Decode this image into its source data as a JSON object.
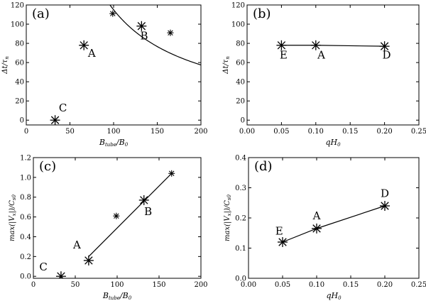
{
  "chart_data": [
    {
      "type": "scatter",
      "panel_label": "(a)",
      "xlabel": "B_tube/B_0",
      "xlabel_main": "B",
      "xlabel_sub": "tube",
      "xlabel_rest": "/B",
      "xlabel_rest_sub": "0",
      "ylabel": "Δt/τ_n",
      "ylabel_main": "Δt/τ",
      "ylabel_sub": "n",
      "xlim": [
        0,
        200
      ],
      "ylim": [
        -5,
        120
      ],
      "xticks": [
        "0",
        "50",
        "100",
        "150",
        "200"
      ],
      "yticks": [
        "0",
        "20",
        "40",
        "60",
        "80",
        "100",
        "120"
      ],
      "xtick_values": [
        0,
        50,
        100,
        150,
        200
      ],
      "ytick_values": [
        0,
        20,
        40,
        60,
        80,
        100,
        120
      ],
      "big_stars": [
        {
          "x": 33,
          "y": 0
        },
        {
          "x": 66,
          "y": 78
        },
        {
          "x": 132,
          "y": 98
        }
      ],
      "small_stars": [
        {
          "x": 99,
          "y": 111
        },
        {
          "x": 165,
          "y": 91
        }
      ],
      "fit_curve": {
        "kind": "inverse",
        "k": 11500,
        "x_from": 92,
        "x_to": 200
      },
      "point_labels": [
        {
          "text": "A",
          "x": 75,
          "y": 66
        },
        {
          "text": "B",
          "x": 135,
          "y": 84
        },
        {
          "text": "C",
          "x": 42,
          "y": 9
        }
      ]
    },
    {
      "type": "line",
      "panel_label": "(b)",
      "xlabel": "qH_0",
      "xlabel_main": "qH",
      "xlabel_sub": "0",
      "ylabel": "Δt/τ_n",
      "ylabel_main": "Δt/τ",
      "ylabel_sub": "n",
      "xlim": [
        0,
        0.25
      ],
      "ylim": [
        -5,
        120
      ],
      "xticks": [
        "0.00",
        "0.05",
        "0.10",
        "0.15",
        "0.20",
        "0.25"
      ],
      "yticks": [
        "0",
        "20",
        "40",
        "60",
        "80",
        "100",
        "120"
      ],
      "xtick_values": [
        0,
        0.05,
        0.1,
        0.15,
        0.2,
        0.25
      ],
      "ytick_values": [
        0,
        20,
        40,
        60,
        80,
        100,
        120
      ],
      "series": [
        {
          "name": "runs",
          "x": [
            0.05,
            0.1,
            0.2
          ],
          "y": [
            78,
            78,
            77
          ]
        }
      ],
      "big_stars": [
        {
          "x": 0.05,
          "y": 78
        },
        {
          "x": 0.1,
          "y": 78
        },
        {
          "x": 0.2,
          "y": 77
        }
      ],
      "point_labels": [
        {
          "text": "E",
          "x": 0.053,
          "y": 64
        },
        {
          "text": "A",
          "x": 0.108,
          "y": 64
        },
        {
          "text": "D",
          "x": 0.203,
          "y": 64
        }
      ]
    },
    {
      "type": "scatter",
      "panel_label": "(c)",
      "xlabel": "B_tube/B_0",
      "xlabel_main": "B",
      "xlabel_sub": "tube",
      "xlabel_rest": "/B",
      "xlabel_rest_sub": "0",
      "ylabel": "max(|V_x|)/C_s0",
      "ylabel_main": "max(|V",
      "ylabel_sub": "x",
      "ylabel_rest": "|)/C",
      "ylabel_rest_sub": "s0",
      "xlim": [
        0,
        200
      ],
      "ylim": [
        -0.02,
        1.2
      ],
      "xticks": [
        "0",
        "50",
        "100",
        "150",
        "200"
      ],
      "yticks": [
        "0.0",
        "0.2",
        "0.4",
        "0.6",
        "0.8",
        "1.0",
        "1.2"
      ],
      "xtick_values": [
        0,
        50,
        100,
        150,
        200
      ],
      "ytick_values": [
        0,
        0.2,
        0.4,
        0.6,
        0.8,
        1.0,
        1.2
      ],
      "series": [
        {
          "name": "fit",
          "x": [
            66,
            165
          ],
          "y": [
            0.2,
            1.04
          ]
        }
      ],
      "big_stars": [
        {
          "x": 33,
          "y": 0.0
        },
        {
          "x": 66,
          "y": 0.16
        },
        {
          "x": 132,
          "y": 0.77
        }
      ],
      "small_stars": [
        {
          "x": 99,
          "y": 0.61
        },
        {
          "x": 165,
          "y": 1.04
        }
      ],
      "point_labels": [
        {
          "text": "A",
          "x": 52,
          "y": 0.28
        },
        {
          "text": "B",
          "x": 137,
          "y": 0.62
        },
        {
          "text": "C",
          "x": 12,
          "y": 0.06
        }
      ]
    },
    {
      "type": "line",
      "panel_label": "(d)",
      "xlabel": "qH_0",
      "xlabel_main": "qH",
      "xlabel_sub": "0",
      "ylabel": "max(|V_x|)/C_s0",
      "ylabel_main": "max(|V",
      "ylabel_sub": "x",
      "ylabel_rest": "|)/C",
      "ylabel_rest_sub": "s0",
      "xlim": [
        0,
        0.25
      ],
      "ylim": [
        0.0,
        0.4
      ],
      "xticks": [
        "0.00",
        "0.05",
        "0.10",
        "0.15",
        "0.20",
        "0.25"
      ],
      "yticks": [
        "0.0",
        "0.1",
        "0.2",
        "0.3",
        "0.4"
      ],
      "xtick_values": [
        0,
        0.05,
        0.1,
        0.15,
        0.2,
        0.25
      ],
      "ytick_values": [
        0.0,
        0.1,
        0.2,
        0.3,
        0.4
      ],
      "series": [
        {
          "name": "runs",
          "x": [
            0.05,
            0.1,
            0.2
          ],
          "y": [
            0.12,
            0.165,
            0.24
          ]
        }
      ],
      "big_stars": [
        {
          "x": 0.05,
          "y": 0.12
        },
        {
          "x": 0.1,
          "y": 0.165
        },
        {
          "x": 0.2,
          "y": 0.24
        }
      ],
      "point_labels": [
        {
          "text": "E",
          "x": 0.045,
          "y": 0.145
        },
        {
          "text": "A",
          "x": 0.1,
          "y": 0.195
        },
        {
          "text": "D",
          "x": 0.2,
          "y": 0.27
        }
      ]
    }
  ]
}
